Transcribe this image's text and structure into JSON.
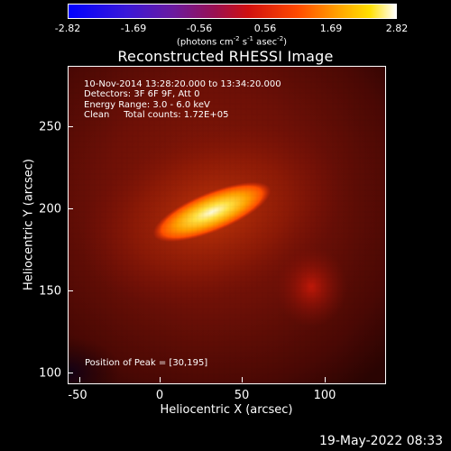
{
  "colorbar": {
    "ticks": [
      "-2.82",
      "-1.69",
      "-0.56",
      "0.56",
      "1.69",
      "2.82"
    ],
    "units": "(photons cm",
    "units_sup1": "-2",
    "units_mid": " s",
    "units_sup2": "-1",
    "units_tail": " asec",
    "units_sup3": "-2",
    "units_close": ")"
  },
  "title": "Reconstructed RHESSI Image",
  "info": {
    "time": "10-Nov-2014 13:28:20.000 to 13:34:20.000",
    "detectors": "Detectors: 3F 6F 9F, Att 0",
    "energy": "Energy Range: 3.0 - 6.0 keV",
    "clean": "Clean     Total counts: 1.72E+05"
  },
  "peak": "Position of Peak = [30,195]",
  "axes": {
    "xlabel": "Heliocentric X (arcsec)",
    "ylabel": "Heliocentric Y (arcsec)",
    "xticks": [
      "-50",
      "0",
      "50",
      "100"
    ],
    "yticks": [
      "250",
      "200",
      "150",
      "100"
    ]
  },
  "timestamp": "19-May-2022 08:33"
}
